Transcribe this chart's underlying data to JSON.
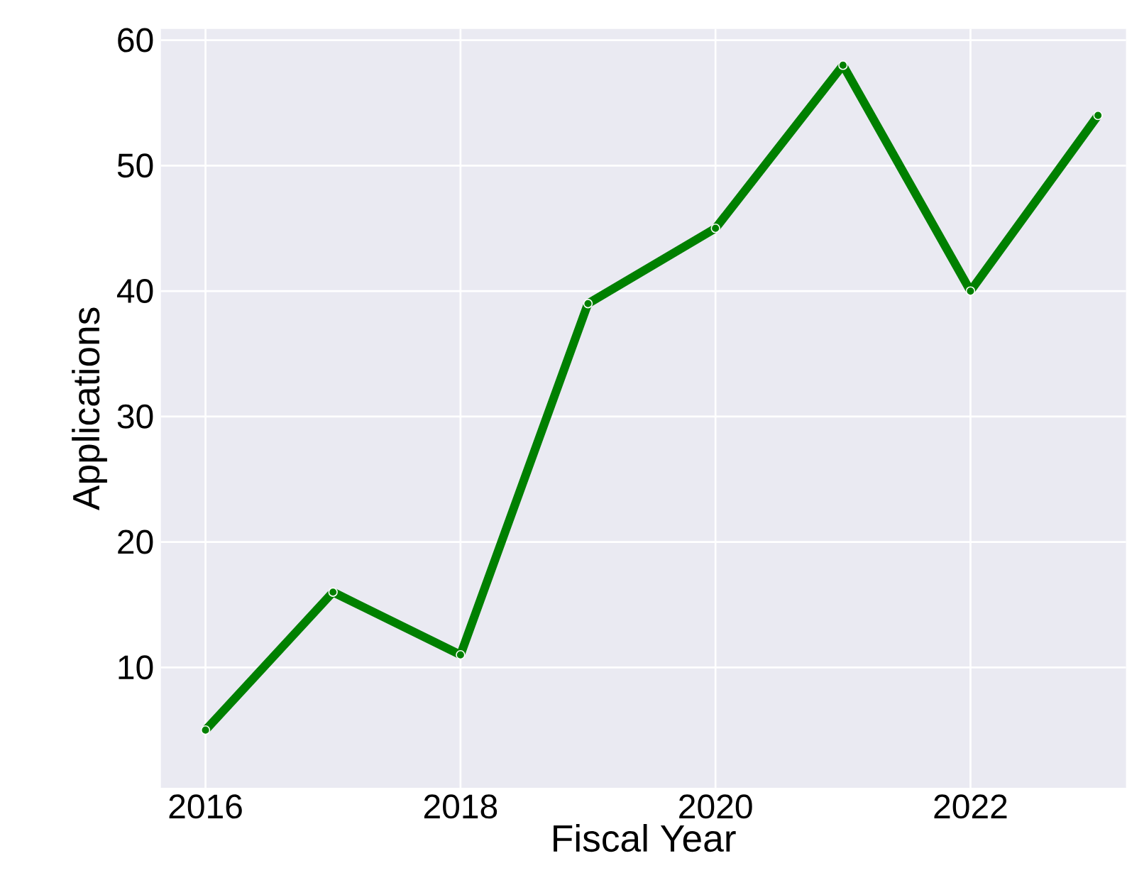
{
  "chart_data": {
    "type": "line",
    "xlabel": "Fiscal Year",
    "ylabel": "Applications",
    "x": [
      2016,
      2017,
      2018,
      2019,
      2020,
      2021,
      2022,
      2023
    ],
    "series": [
      {
        "color": "#008000",
        "values": [
          5,
          16,
          11,
          39,
          45,
          58,
          40,
          54
        ]
      }
    ],
    "xlim": [
      2015.65,
      2023.22
    ],
    "ylim": [
      0.4,
      60.9
    ],
    "xticks": [
      2016,
      2018,
      2020,
      2022
    ],
    "yticks": [
      10,
      20,
      30,
      40,
      50,
      60
    ],
    "grid": true,
    "marker": "circle",
    "line_style": "solid"
  }
}
